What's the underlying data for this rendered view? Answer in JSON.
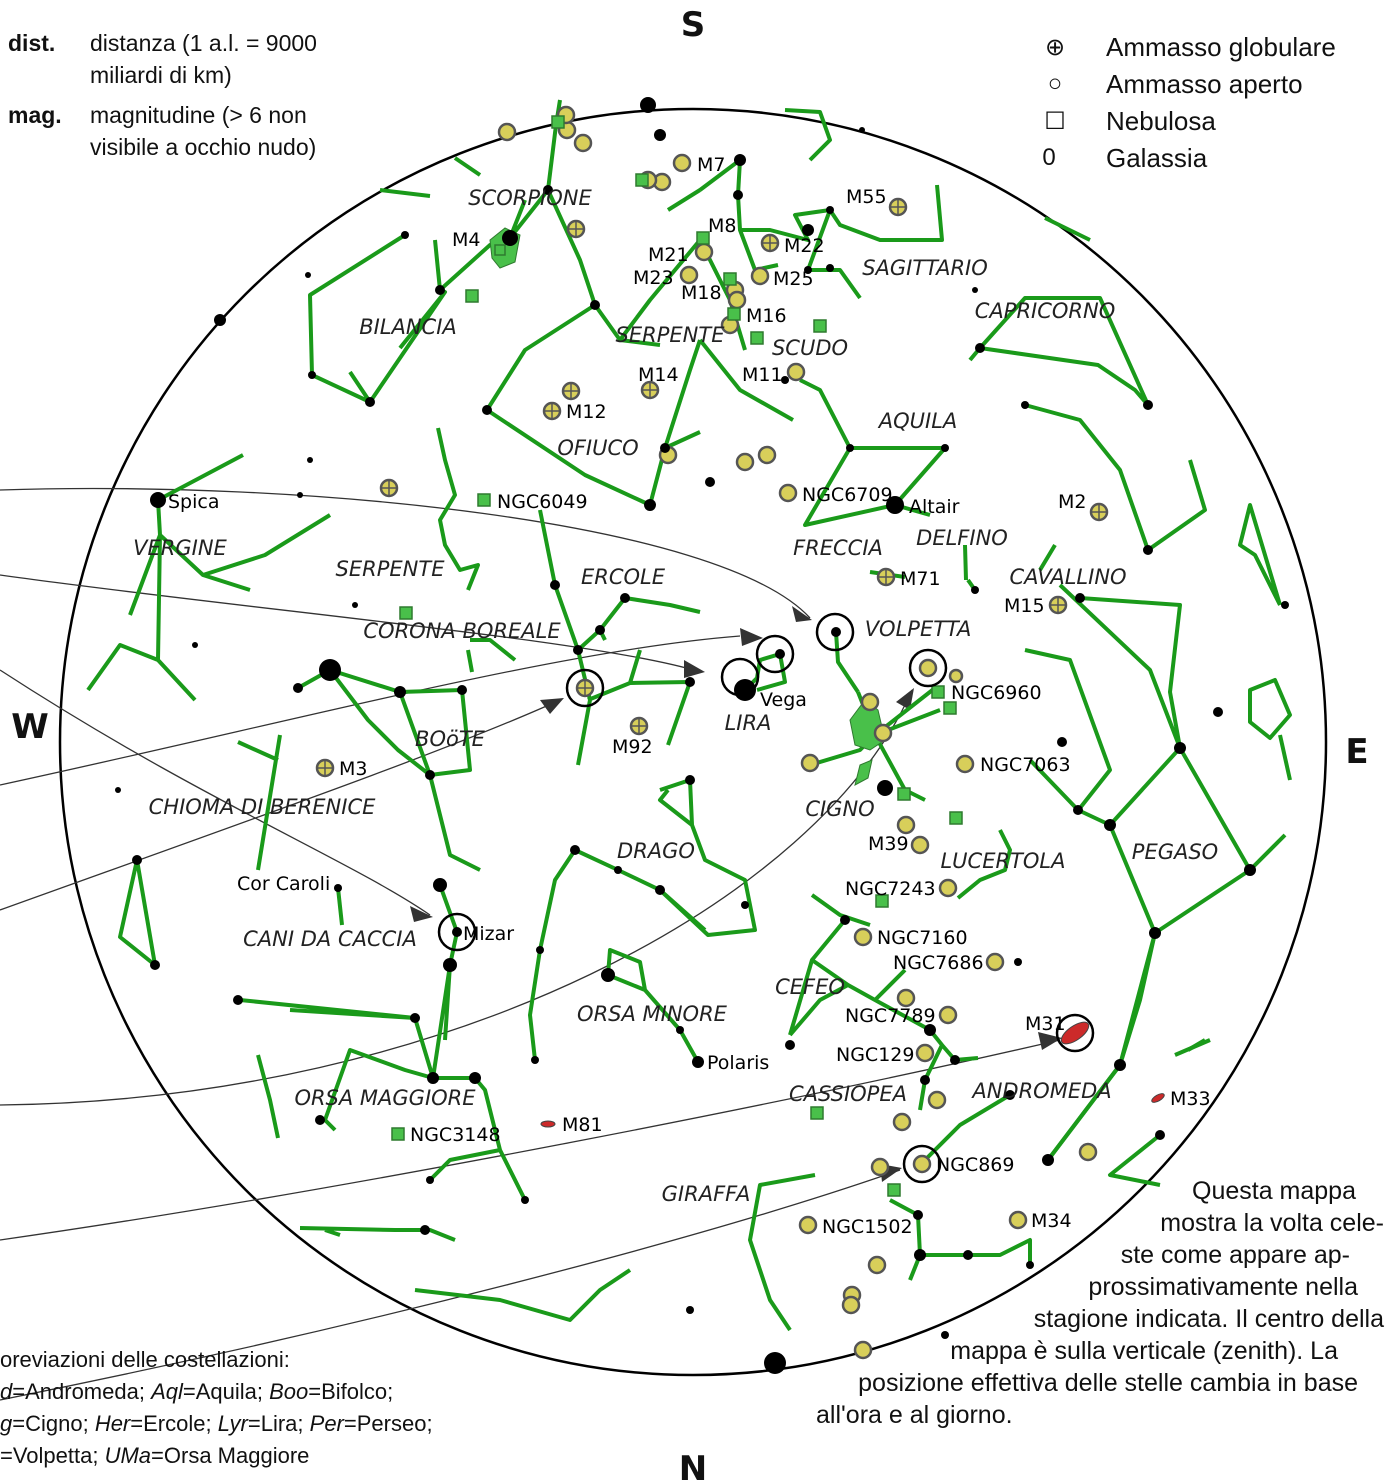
{
  "cardinal": {
    "south": "S",
    "north": "N",
    "west": "W",
    "east": "E"
  },
  "definitions": [
    {
      "key": "dist.",
      "text_lines": [
        "distanza (1 a.l. = 9000",
        "miliardi di km)"
      ]
    },
    {
      "key": "mag.",
      "text_lines": [
        "magnitudine (> 6 non",
        "visibile a occhio nudo)"
      ]
    }
  ],
  "legend": [
    {
      "symbol": "⊕",
      "label": "Ammasso globulare"
    },
    {
      "symbol": "○",
      "label": "Ammasso aperto"
    },
    {
      "symbol": "☐",
      "label": "Nebulosa"
    },
    {
      "symbol": "0",
      "label": "Galassia"
    }
  ],
  "constellations": [
    "SCORPIONE",
    "SAGITTARIO",
    "CAPRICORNO",
    "BILANCIA",
    "SERPENTE",
    "SCUDO",
    "AQUILA",
    "OFIUCO",
    "VERGINE",
    "SERPENTE",
    "ERCOLE",
    "FRECCIA",
    "DELFINO",
    "CAVALLINO",
    "CORONA BOREALE",
    "VOLPETTA",
    "LIRA",
    "BOöTE",
    "CHIOMA DI BERENICE",
    "CIGNO",
    "DRAGO",
    "LUCERTOLA",
    "PEGASO",
    "CANI DA CACCIA",
    "CEFEO",
    "ORSA MINORE",
    "CASSIOPEA",
    "ANDROMEDA",
    "ORSA MAGGIORE",
    "GIRAFFA"
  ],
  "objects": [
    "M7",
    "M55",
    "M4",
    "M8",
    "M21",
    "M22",
    "M23",
    "M25",
    "M18",
    "M16",
    "M11",
    "M14",
    "M12",
    "NGC6049",
    "NGC6709",
    "Altair",
    "M2",
    "M71",
    "M15",
    "NGC6960",
    "Vega",
    "M92",
    "M3",
    "NGC7063",
    "M39",
    "NGC7243",
    "NGC7160",
    "NGC7686",
    "NGC7789",
    "NGC129",
    "M31",
    "M33",
    "NGC869",
    "M34",
    "NGC1502",
    "NGC3148",
    "M81",
    "Spica",
    "Cor Caroli",
    "Mizar",
    "Polaris"
  ],
  "note_lines": [
    "Questa mappa",
    "mostra la volta cele-",
    "ste come appare ap-",
    "prossimativamente nella",
    "stagione indicata. Il centro della",
    "mappa è sulla verticale (zenith). La",
    "posizione effettiva delle stelle cambia in base",
    "all'ora e al giorno."
  ],
  "abbreviations": {
    "title": "oreviazioni delle costellazioni:",
    "lines": [
      [
        {
          "abbr": "d",
          "name": "=Andromeda; "
        },
        {
          "abbr": "Aql",
          "name": "=Aquila; "
        },
        {
          "abbr": "Boo",
          "name": "=Bifolco;"
        }
      ],
      [
        {
          "abbr": "g",
          "name": "=Cigno; "
        },
        {
          "abbr": "Her",
          "name": "=Ercole; "
        },
        {
          "abbr": "Lyr",
          "name": "=Lira; "
        },
        {
          "abbr": "Per",
          "name": "=Perseo;"
        }
      ],
      [
        {
          "abbr": "",
          "name": "=Volpetta; "
        },
        {
          "abbr": "UMa",
          "name": "=Orsa Maggiore"
        }
      ]
    ]
  },
  "colors": {
    "line": "#1a9a1a",
    "yellow": "#d8cf5a",
    "green": "#49c04a",
    "red": "#cc2a2a",
    "ring": "#000000"
  }
}
